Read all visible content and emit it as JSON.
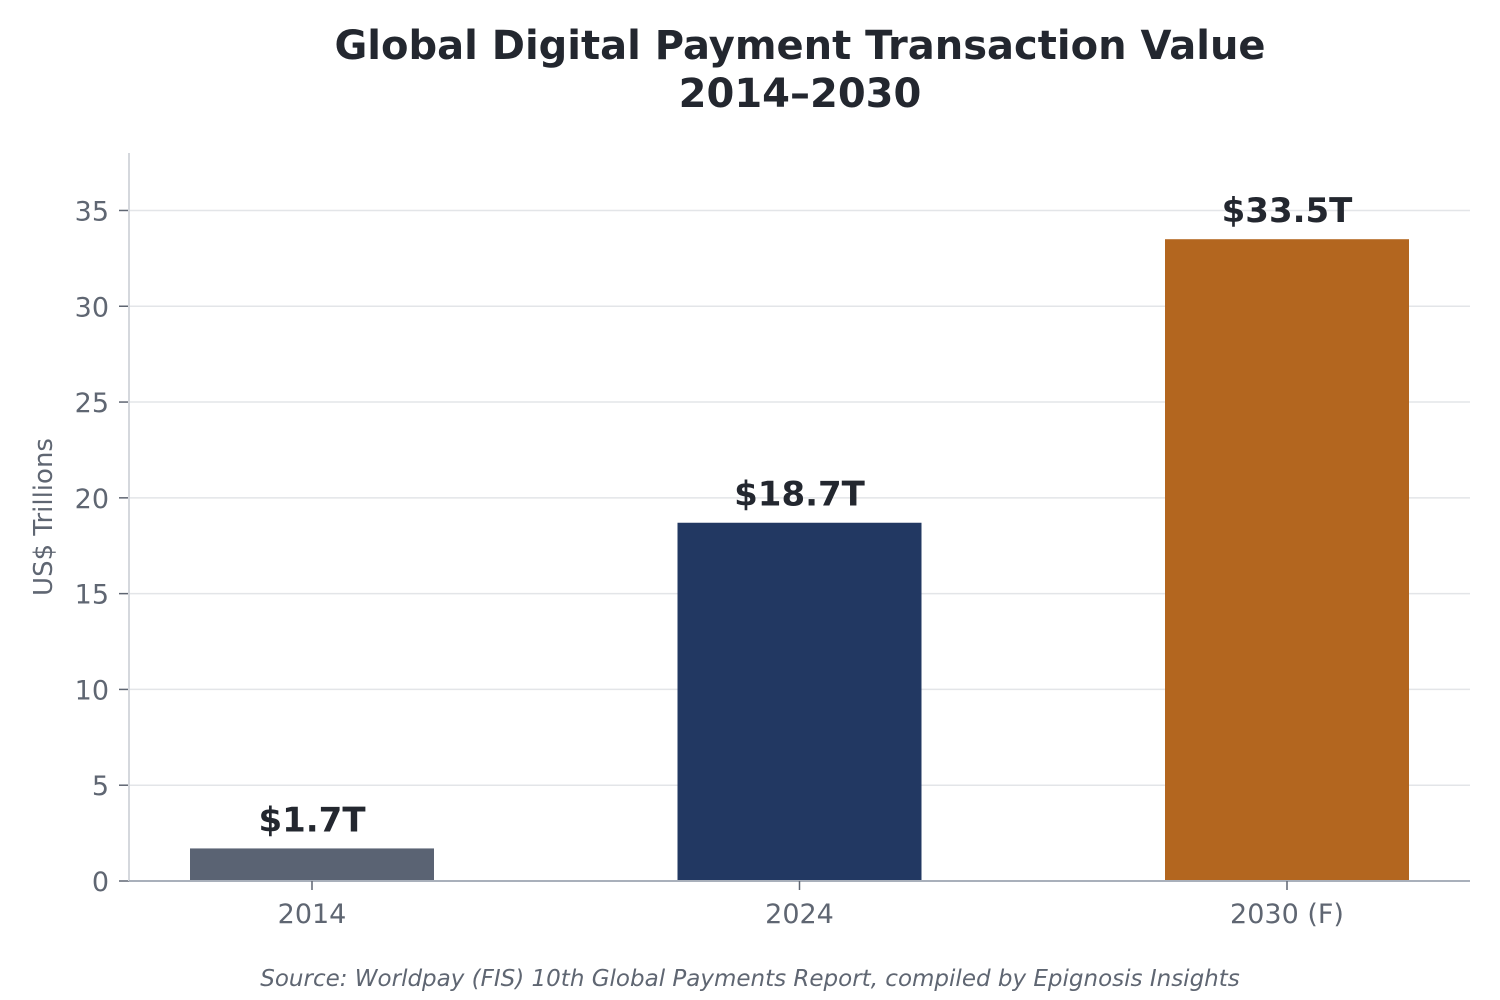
{
  "chart_data": {
    "type": "bar",
    "title_lines": [
      "Global Digital Payment Transaction Value",
      "2014–2030"
    ],
    "xlabel": "",
    "ylabel": "US$ Trillions",
    "categories": [
      "2014",
      "2024",
      "2030 (F)"
    ],
    "values": [
      1.7,
      18.7,
      33.5
    ],
    "value_labels": [
      "$1.7T",
      "$18.7T",
      "$33.5T"
    ],
    "colors": [
      "#5a6373",
      "#223862",
      "#b3661f"
    ],
    "ylim": [
      0,
      38
    ],
    "yticks": [
      0,
      5,
      10,
      15,
      20,
      25,
      30,
      35
    ],
    "grid": "horizontal",
    "legend": "none"
  },
  "source": "Source: Worldpay (FIS) 10th Global Payments Report, compiled by Epignosis Insights"
}
